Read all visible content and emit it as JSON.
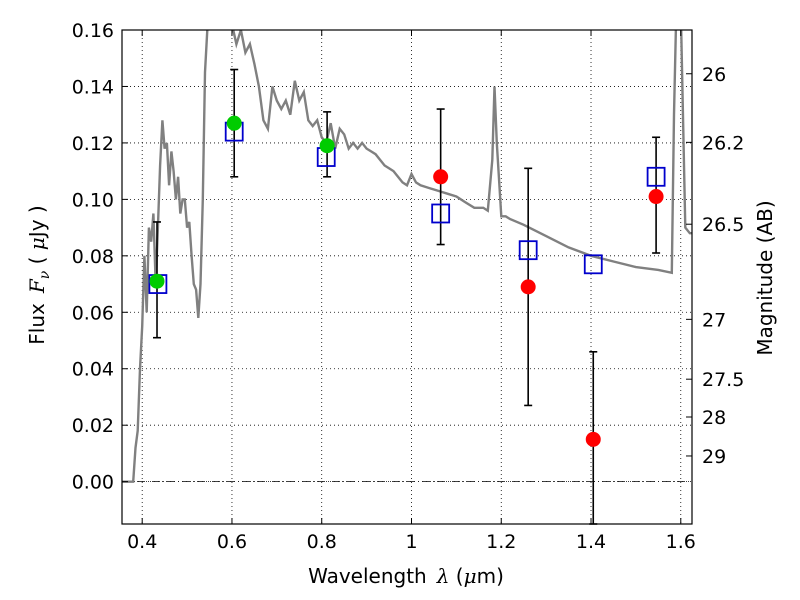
{
  "chart_data": {
    "type": "scatter",
    "xlabel": "Wavelength",
    "xlabel_symbol": "λ",
    "xlabel_unit_open": " (",
    "xlabel_unit_mu": "μ",
    "xlabel_unit_close": "m)",
    "ylabel": "Flux",
    "ylabel_symbol": "F",
    "ylabel_subscript": "ν",
    "ylabel_unit_open": " ( ",
    "ylabel_unit_mu": "μ",
    "ylabel_unit_close": "Jy )",
    "y2label": "Magnitude (AB)",
    "xlim": [
      0.355,
      1.625
    ],
    "ylim": [
      -0.015,
      0.16
    ],
    "grid": true,
    "x_ticks": [
      0.4,
      0.6,
      0.8,
      1.0,
      1.2,
      1.4,
      1.6
    ],
    "x_tick_labels": [
      "0.4",
      "0.6",
      "0.8",
      "1",
      "1.2",
      "1.4",
      "1.6"
    ],
    "y_ticks": [
      0.0,
      0.02,
      0.04,
      0.06,
      0.08,
      0.1,
      0.12,
      0.14,
      0.16
    ],
    "y_tick_labels": [
      "0.00",
      "0.02",
      "0.04",
      "0.06",
      "0.08",
      "0.10",
      "0.12",
      "0.14",
      "0.16"
    ],
    "y2_tick_labels": [
      {
        "label": "26",
        "flux": 0.1445
      },
      {
        "label": "26.2",
        "flux": 0.1202
      },
      {
        "label": "26.5",
        "flux": 0.0912
      },
      {
        "label": "27",
        "flux": 0.0575
      },
      {
        "label": "27.5",
        "flux": 0.0363
      },
      {
        "label": "28",
        "flux": 0.0229
      },
      {
        "label": "29",
        "flux": 0.0091
      }
    ],
    "model_spectrum": {
      "color": "#808080",
      "x": [
        0.355,
        0.38,
        0.385,
        0.39,
        0.395,
        0.4,
        0.405,
        0.41,
        0.415,
        0.42,
        0.425,
        0.43,
        0.435,
        0.44,
        0.445,
        0.45,
        0.455,
        0.46,
        0.465,
        0.47,
        0.475,
        0.48,
        0.485,
        0.49,
        0.495,
        0.5,
        0.505,
        0.51,
        0.515,
        0.52,
        0.525,
        0.53,
        0.535,
        0.54,
        0.545,
        0.55,
        0.56,
        0.57,
        0.58,
        0.59,
        0.6,
        0.61,
        0.62,
        0.63,
        0.64,
        0.65,
        0.66,
        0.67,
        0.68,
        0.69,
        0.7,
        0.71,
        0.72,
        0.73,
        0.74,
        0.75,
        0.76,
        0.77,
        0.78,
        0.79,
        0.8,
        0.81,
        0.82,
        0.83,
        0.84,
        0.85,
        0.86,
        0.87,
        0.88,
        0.89,
        0.9,
        0.91,
        0.92,
        0.93,
        0.94,
        0.95,
        0.96,
        0.97,
        0.98,
        0.99,
        1.0,
        1.01,
        1.02,
        1.04,
        1.06,
        1.08,
        1.1,
        1.12,
        1.14,
        1.16,
        1.17,
        1.18,
        1.185,
        1.19,
        1.2,
        1.205,
        1.21,
        1.22,
        1.25,
        1.3,
        1.35,
        1.4,
        1.45,
        1.5,
        1.55,
        1.58,
        1.585,
        1.59,
        1.6,
        1.61,
        1.62,
        1.625
      ],
      "y": [
        0.0,
        0.0,
        0.012,
        0.018,
        0.04,
        0.055,
        0.08,
        0.06,
        0.09,
        0.085,
        0.095,
        0.07,
        0.09,
        0.112,
        0.128,
        0.118,
        0.12,
        0.105,
        0.117,
        0.11,
        0.1,
        0.108,
        0.095,
        0.1,
        0.1,
        0.09,
        0.092,
        0.08,
        0.07,
        0.068,
        0.058,
        0.07,
        0.1,
        0.145,
        0.16,
        0.17,
        0.19,
        0.18,
        0.17,
        0.165,
        0.162,
        0.155,
        0.16,
        0.152,
        0.155,
        0.148,
        0.14,
        0.128,
        0.125,
        0.14,
        0.135,
        0.132,
        0.135,
        0.13,
        0.142,
        0.135,
        0.138,
        0.128,
        0.126,
        0.128,
        0.122,
        0.12,
        0.127,
        0.118,
        0.125,
        0.123,
        0.118,
        0.12,
        0.118,
        0.12,
        0.118,
        0.117,
        0.116,
        0.114,
        0.112,
        0.111,
        0.11,
        0.108,
        0.106,
        0.105,
        0.109,
        0.106,
        0.105,
        0.104,
        0.103,
        0.102,
        0.101,
        0.099,
        0.097,
        0.097,
        0.096,
        0.114,
        0.14,
        0.12,
        0.094,
        0.094,
        0.094,
        0.093,
        0.091,
        0.087,
        0.083,
        0.08,
        0.078,
        0.076,
        0.075,
        0.074,
        0.13,
        0.17,
        0.18,
        0.09,
        0.088,
        0.088
      ]
    },
    "series": [
      {
        "marker": "open-square",
        "color": "#0000cc",
        "x": [
          0.435,
          0.605,
          0.81,
          1.065,
          1.26,
          1.405,
          1.545
        ],
        "y": [
          0.07,
          0.124,
          0.115,
          0.095,
          0.082,
          0.077,
          0.108
        ]
      },
      {
        "marker": "circle",
        "color": "#00cc00",
        "x": [
          0.433,
          0.605,
          0.812
        ],
        "y": [
          0.071,
          0.127,
          0.119
        ],
        "err_low": [
          0.051,
          0.108,
          0.108
        ],
        "err_high": [
          0.092,
          0.146,
          0.131
        ]
      },
      {
        "marker": "circle",
        "color": "#ff0000",
        "x": [
          1.065,
          1.26,
          1.405,
          1.545
        ],
        "y": [
          0.108,
          0.069,
          0.015,
          0.101
        ],
        "err_low": [
          0.084,
          0.027,
          -0.015,
          0.081
        ],
        "err_high": [
          0.132,
          0.111,
          0.046,
          0.122
        ]
      }
    ]
  }
}
